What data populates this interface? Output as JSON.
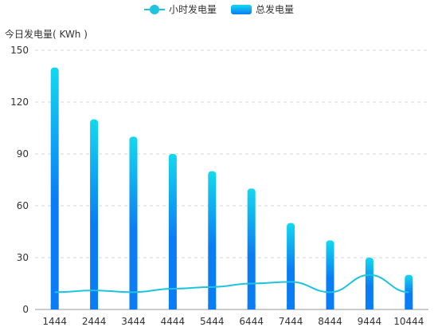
{
  "legend": {
    "line_label": "小时发电量",
    "bar_label": "总发电量"
  },
  "y_unit_label": "今日发电量( KWh )",
  "colors": {
    "line": "#1ec3e0",
    "bar_top": "#14d8ee",
    "bar_bottom": "#0a7cf5",
    "grid": "#d5d5d5",
    "axis": "#999999",
    "tick_text": "#333333"
  },
  "chart_data": {
    "type": "bar",
    "categories": [
      "1444",
      "2444",
      "3444",
      "4444",
      "5444",
      "6444",
      "7444",
      "8444",
      "9444",
      "10444"
    ],
    "series": [
      {
        "name": "总发电量",
        "type": "bar",
        "values": [
          140,
          110,
          100,
          90,
          80,
          70,
          50,
          40,
          30,
          20
        ]
      },
      {
        "name": "小时发电量",
        "type": "line",
        "values": [
          10,
          11,
          10,
          12,
          13,
          15,
          16,
          10,
          20,
          10
        ]
      }
    ],
    "ylabel": "今日发电量( KWh )",
    "ylim": [
      0,
      150
    ],
    "yticks": [
      "0",
      "30",
      "60",
      "90",
      "120",
      "150"
    ],
    "grid": true,
    "legend_position": "top-center"
  }
}
